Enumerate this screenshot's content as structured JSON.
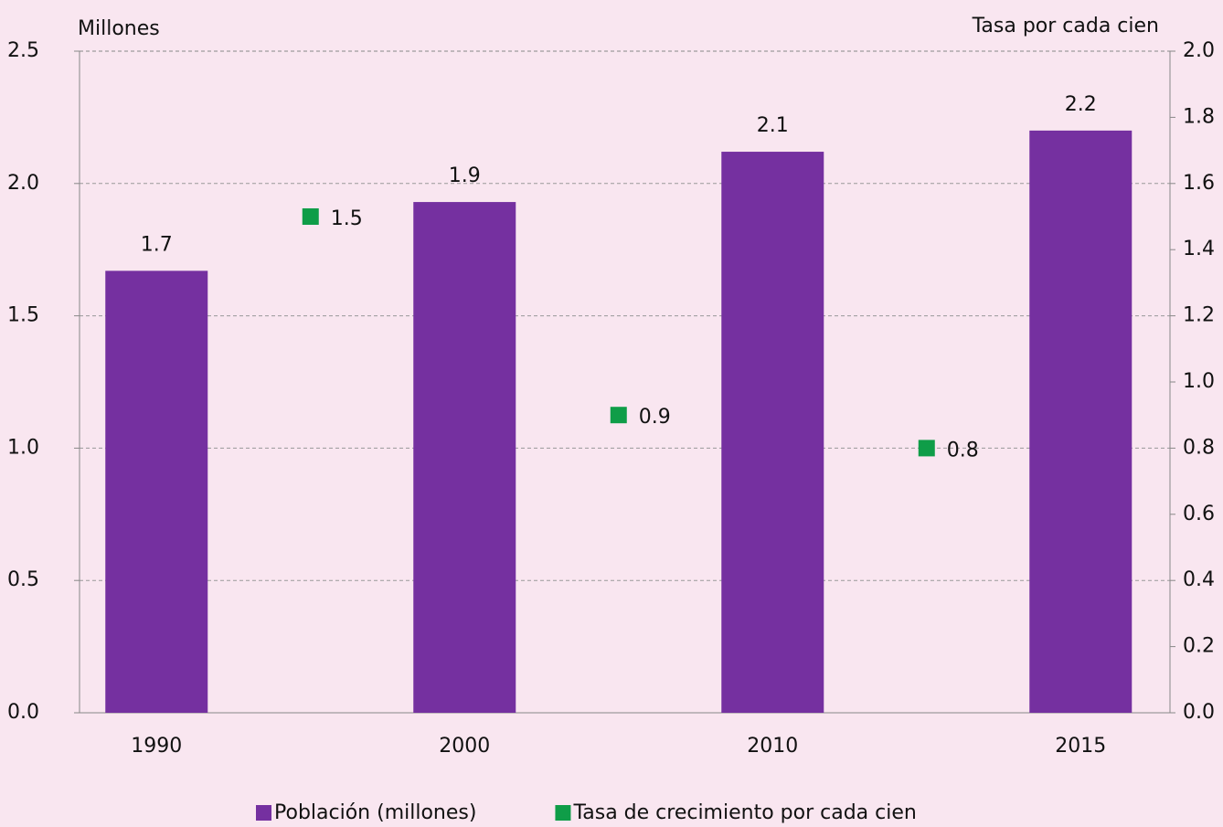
{
  "chart_data": {
    "type": "bar",
    "y_label": "Millones",
    "y2_label": "Tasa por cada cien",
    "categories": [
      "1990",
      "2000",
      "2010",
      "2015"
    ],
    "series": [
      {
        "name": "Población (millones)",
        "color": "#7530a0",
        "type": "bar",
        "values": [
          1.67,
          1.93,
          2.12,
          2.2
        ],
        "value_labels": [
          "1.7",
          "1.9",
          "2.1",
          "2.2"
        ]
      },
      {
        "name": "Tasa de crecimiento por cada cien",
        "color": "#0f9d48",
        "type": "marker",
        "axis": "y2",
        "values": [
          null,
          1.5,
          0.9,
          0.8
        ]
      }
    ],
    "ylim": [
      0,
      2.5
    ],
    "yticks": [
      {
        "value": 0,
        "label": "0.0"
      },
      0.5,
      {
        "value": 1,
        "label": "1.0"
      },
      1.5,
      {
        "value": 2,
        "label": "2.0"
      },
      2.5
    ],
    "y2lim": [
      0,
      2
    ],
    "y2ticks": [
      {
        "value": 0,
        "label": "0.0"
      },
      0.2,
      0.4,
      0.6,
      0.8,
      {
        "value": 1,
        "label": "1.0"
      },
      1.2,
      1.4,
      1.6,
      1.8,
      {
        "value": 2,
        "label": "2.0"
      }
    ],
    "grid": true,
    "legend": "bottom"
  }
}
